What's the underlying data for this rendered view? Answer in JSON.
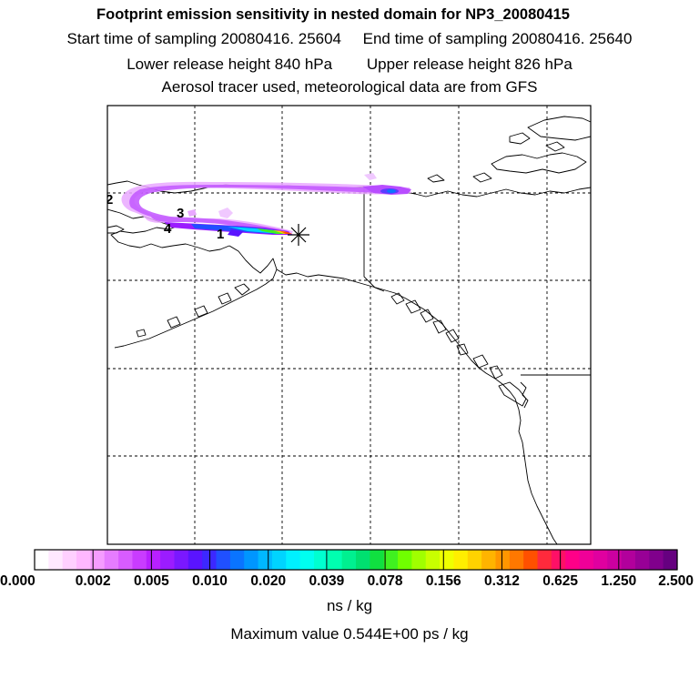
{
  "titles": {
    "line1": "Footprint emission sensitivity in nested domain for NP3_20080415",
    "start_label": "Start time of sampling 20080416. 25604",
    "end_label": "End time of sampling 20080416. 25640",
    "lower_label": "Lower release height  840 hPa",
    "upper_label": "Upper release height  826 hPa",
    "line4": "Aerosol tracer used, meteorological data are from GFS"
  },
  "map": {
    "trajectory_markers": [
      "1",
      "2",
      "3",
      "4"
    ],
    "release_marker_icon": "asterisk-star-icon"
  },
  "colorbar": {
    "tick_labels": [
      "0.000",
      "0.002",
      "0.005",
      "0.010",
      "0.020",
      "0.039",
      "0.078",
      "0.156",
      "0.312",
      "0.625",
      "1.250",
      "2.500"
    ],
    "colors": [
      "#ffffff",
      "#ffe8ff",
      "#ffd0ff",
      "#ffb8ff",
      "#f59cff",
      "#e67cff",
      "#d85cff",
      "#c93cff",
      "#b820ff",
      "#9b1cff",
      "#7a18ff",
      "#5a14ff",
      "#3c28ff",
      "#2050ff",
      "#0a74ff",
      "#0096ff",
      "#00b8ff",
      "#00d4ff",
      "#00f0ff",
      "#00fff0",
      "#00ffd0",
      "#00ffb0",
      "#00f090",
      "#00e070",
      "#10e040",
      "#40f020",
      "#70ff00",
      "#a0ff00",
      "#c8ff00",
      "#f0ff00",
      "#ffee00",
      "#ffd200",
      "#ffb400",
      "#ff9600",
      "#ff7800",
      "#ff5000",
      "#ff2a3c",
      "#ff1066",
      "#ff0088",
      "#f00098",
      "#e000a0",
      "#cc00a0",
      "#b2009c",
      "#980096",
      "#80008c",
      "#660080"
    ],
    "unit": "ns / kg"
  },
  "max_value_text": "Maximum value  0.544E+00 ps / kg"
}
